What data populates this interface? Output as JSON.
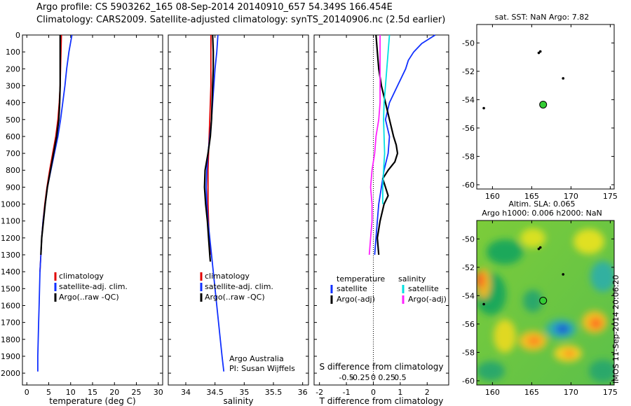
{
  "header": {
    "line1": "Argo profile: CS 5903262_165 08-Sep-2014 20140910_657 54.349S 166.454E",
    "line2": "Climatology: CARS2009. Satellite-adjusted climatology: synTS_20140906.nc (2.5d earlier)"
  },
  "stamp": "IMOS 11-Sep-2014 20:06:20",
  "credit": {
    "line1": "Argo Australia",
    "line2": "PI: Susan Wijffels"
  },
  "colors": {
    "climatology": "#e00000",
    "satellite": "#1030ff",
    "argo": "#000000",
    "sat_salinity": "#00e0e0",
    "argo_salinity_adj": "#ff20ff",
    "float_marker": "#33cc33"
  },
  "chart_data": [
    {
      "type": "line",
      "xlabel": "temperature (deg C)",
      "ylabel": "",
      "xlim": [
        -1,
        31
      ],
      "ylim": [
        2070,
        0
      ],
      "xticks": [
        0,
        5,
        10,
        15,
        20,
        25,
        30
      ],
      "yticks": [
        0,
        100,
        200,
        300,
        400,
        500,
        600,
        700,
        800,
        900,
        1000,
        1100,
        1200,
        1300,
        1400,
        1500,
        1600,
        1700,
        1800,
        1900,
        2000
      ],
      "legend": [
        "climatology",
        "satellite-adj. clim.",
        "Argo(..raw -QC)"
      ],
      "series": [
        {
          "name": "climatology",
          "color": "#e00000",
          "depth": [
            0,
            100,
            200,
            300,
            400,
            500,
            600,
            700,
            800,
            900,
            1000,
            1100,
            1200,
            1300,
            1400
          ],
          "values": [
            7.9,
            7.8,
            7.7,
            7.6,
            7.4,
            7.1,
            6.6,
            5.9,
            5.2,
            4.6,
            4.1,
            3.7,
            3.4,
            3.2,
            3.0
          ]
        },
        {
          "name": "satellite-adj. clim.",
          "color": "#1030ff",
          "depth": [
            0,
            100,
            200,
            300,
            400,
            500,
            600,
            700,
            800,
            900,
            1000,
            1100,
            1200,
            1300,
            1400,
            1500,
            1600,
            1700,
            1800,
            1900,
            1990
          ],
          "values": [
            10.3,
            9.6,
            9.1,
            8.7,
            8.2,
            7.7,
            7.1,
            6.3,
            5.5,
            4.7,
            4.2,
            3.7,
            3.4,
            3.2,
            3.0,
            2.9,
            2.8,
            2.7,
            2.6,
            2.5,
            2.5
          ]
        },
        {
          "name": "Argo(..raw -QC)",
          "color": "#000000",
          "depth": [
            0,
            100,
            200,
            300,
            400,
            500,
            600,
            700,
            800,
            900,
            1000,
            1100,
            1200,
            1300
          ],
          "values": [
            7.6,
            7.6,
            7.6,
            7.6,
            7.5,
            7.3,
            6.8,
            6.1,
            5.4,
            4.7,
            4.2,
            3.8,
            3.4,
            3.2
          ]
        }
      ]
    },
    {
      "type": "line",
      "xlabel": "salinity",
      "ylabel": "",
      "xlim": [
        33.7,
        36.1
      ],
      "ylim": [
        2070,
        0
      ],
      "xticks": [
        34,
        34.5,
        35,
        35.5,
        36
      ],
      "legend": [
        "climatology",
        "satellite-adj. clim.",
        "Argo(..raw -QC)"
      ],
      "series": [
        {
          "name": "climatology",
          "color": "#e00000",
          "depth": [
            0,
            100,
            200,
            300,
            400,
            500,
            600,
            700,
            800,
            900,
            1000,
            1100,
            1200,
            1300
          ],
          "values": [
            34.43,
            34.43,
            34.43,
            34.43,
            34.42,
            34.41,
            34.4,
            34.39,
            34.38,
            34.38,
            34.38,
            34.39,
            34.4,
            34.42
          ]
        },
        {
          "name": "satellite-adj. clim.",
          "color": "#1030ff",
          "depth": [
            0,
            100,
            200,
            300,
            400,
            500,
            600,
            700,
            800,
            900,
            1000,
            1100,
            1200,
            1300,
            1400,
            1500,
            1600,
            1700,
            1800,
            1900,
            1990
          ],
          "values": [
            34.55,
            34.53,
            34.5,
            34.48,
            34.46,
            34.44,
            34.41,
            34.38,
            34.36,
            34.35,
            34.36,
            34.38,
            34.41,
            34.44,
            34.47,
            34.5,
            34.53,
            34.56,
            34.59,
            34.62,
            34.65
          ]
        },
        {
          "name": "Argo(..raw -QC)",
          "color": "#000000",
          "depth": [
            0,
            100,
            200,
            300,
            400,
            500,
            600,
            700,
            800,
            900,
            1000,
            1100,
            1200,
            1300,
            1340
          ],
          "values": [
            34.46,
            34.47,
            34.47,
            34.46,
            34.45,
            34.44,
            34.42,
            34.38,
            34.33,
            34.32,
            34.34,
            34.37,
            34.39,
            34.41,
            34.42
          ]
        }
      ]
    },
    {
      "type": "line",
      "xlabel": "T difference from climatology",
      "top_axis_label": "S difference from climatology",
      "xlim": [
        -2.2,
        2.8
      ],
      "ylim": [
        2070,
        0
      ],
      "xticks": [
        -2,
        -1,
        0,
        1,
        2
      ],
      "xtick_labels": [
        "-2",
        "-1",
        "0",
        "1",
        "2"
      ],
      "sticks": [
        -1,
        -0.5,
        0,
        0.5,
        1
      ],
      "stick_labels": [
        "-0.5",
        "-0.25",
        "0",
        "0.25",
        "0.5"
      ],
      "legend": {
        "temperature_header": "temperature",
        "salinity_header": "salinity",
        "temperature": [
          "satellite",
          "Argo(-adj)"
        ],
        "salinity": [
          "satellite",
          "Argo(-adj)"
        ]
      },
      "series": [
        {
          "name": "satellite",
          "group": "temperature",
          "color": "#1030ff",
          "depth": [
            0,
            50,
            100,
            150,
            200,
            300,
            400,
            500,
            600,
            700,
            800,
            900,
            1000,
            1100,
            1200,
            1300
          ],
          "values": [
            2.3,
            1.8,
            1.5,
            1.3,
            1.2,
            0.9,
            0.6,
            0.45,
            0.6,
            0.55,
            0.4,
            0.3,
            0.2,
            0.15,
            0.1,
            0.05
          ]
        },
        {
          "name": "Argo(-adj)",
          "group": "temperature",
          "color": "#000000",
          "depth": [
            0,
            100,
            200,
            300,
            400,
            500,
            600,
            650,
            700,
            750,
            800,
            850,
            900,
            950,
            1000,
            1100,
            1200,
            1300
          ],
          "values": [
            0.1,
            0.15,
            0.2,
            0.3,
            0.45,
            0.6,
            0.75,
            0.85,
            0.9,
            0.8,
            0.55,
            0.35,
            0.45,
            0.55,
            0.4,
            0.25,
            0.15,
            0.2
          ]
        },
        {
          "name": "satellite",
          "group": "salinity",
          "color": "#00e0e0",
          "depth": [
            0,
            100,
            200,
            300,
            400,
            500,
            600,
            700,
            800,
            900,
            1000
          ],
          "values": [
            0.6,
            0.55,
            0.5,
            0.45,
            0.4,
            0.38,
            0.4,
            0.42,
            0.38,
            0.35,
            0.35
          ]
        },
        {
          "name": "Argo(-adj)",
          "group": "salinity",
          "color": "#ff20ff",
          "depth": [
            0,
            200,
            400,
            500,
            600,
            700,
            800,
            900,
            1000,
            1100,
            1200,
            1300
          ],
          "values": [
            0.25,
            0.25,
            0.25,
            0.2,
            0.1,
            0.05,
            -0.05,
            -0.1,
            -0.05,
            -0.05,
            -0.1,
            -0.15
          ]
        }
      ]
    },
    {
      "type": "scatter",
      "title": "sat. SST: NaN Argo: 7.82",
      "xlim": [
        158,
        175.5
      ],
      "ylim": [
        -60.3,
        -48.7
      ],
      "xticks": [
        160,
        165,
        170,
        175
      ],
      "yticks": [
        -50,
        -52,
        -54,
        -56,
        -58,
        -60
      ],
      "ytick_labels": [
        "-50",
        "-52",
        "-54",
        "-56",
        "-58",
        "-60"
      ],
      "islands": [
        [
          165.9,
          -50.7
        ],
        [
          166.1,
          -50.6
        ],
        [
          169.0,
          -52.5
        ],
        [
          158.9,
          -54.6
        ]
      ],
      "float_position": [
        166.454,
        -54.349
      ]
    },
    {
      "type": "heatmap",
      "title_line1": "Altim. SLA: 0.065",
      "title_line2": "Argo h1000: 0.006 h2000: NaN",
      "xlim": [
        158,
        175.5
      ],
      "ylim": [
        -60.3,
        -48.7
      ],
      "xticks": [
        160,
        165,
        170,
        175
      ],
      "yticks": [
        -50,
        -52,
        -54,
        -56,
        -58,
        -60
      ],
      "ytick_labels": [
        "-50",
        "-52",
        "-54",
        "-56",
        "-58",
        "-60"
      ],
      "islands": [
        [
          165.9,
          -50.7
        ],
        [
          166.1,
          -50.6
        ],
        [
          169.0,
          -52.5
        ],
        [
          158.9,
          -54.6
        ]
      ],
      "float_position": [
        166.454,
        -54.349
      ]
    }
  ]
}
